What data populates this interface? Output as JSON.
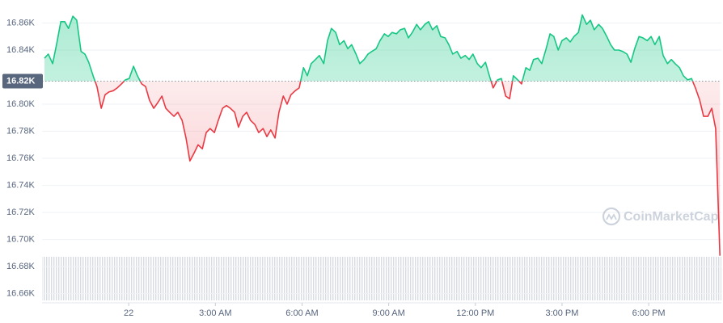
{
  "chart_data": {
    "type": "line",
    "watermark": "CoinMarketCap",
    "up_color": "#16c784",
    "down_color": "#ea3943",
    "grid": true,
    "baseline": {
      "value": 16817,
      "label": "16.82K"
    },
    "xlim": [
      -180,
      1231
    ],
    "ylim": [
      16655,
      16877
    ],
    "xticks": [
      {
        "value": 0,
        "label": "22"
      },
      {
        "value": 180,
        "label": "3:00 AM"
      },
      {
        "value": 360,
        "label": "6:00 AM"
      },
      {
        "value": 540,
        "label": "9:00 AM"
      },
      {
        "value": 720,
        "label": "12:00 PM"
      },
      {
        "value": 900,
        "label": "3:00 PM"
      },
      {
        "value": 1080,
        "label": "6:00 PM"
      }
    ],
    "yticks": [
      {
        "value": 16660,
        "label": "16.66K"
      },
      {
        "value": 16680,
        "label": "16.68K"
      },
      {
        "value": 16700,
        "label": "16.70K"
      },
      {
        "value": 16720,
        "label": "16.72K"
      },
      {
        "value": 16740,
        "label": "16.74K"
      },
      {
        "value": 16760,
        "label": "16.76K"
      },
      {
        "value": 16780,
        "label": "16.78K"
      },
      {
        "value": 16800,
        "label": "16.80K"
      },
      {
        "value": 16840,
        "label": "16.84K"
      },
      {
        "value": 16860,
        "label": "16.86K"
      }
    ],
    "x": [
      -175,
      -167,
      -158,
      -150,
      -141,
      -133,
      -125,
      -116,
      -108,
      -99,
      -91,
      -83,
      -74,
      -66,
      -57,
      -49,
      -41,
      -32,
      -24,
      -15,
      -7,
      1,
      10,
      18,
      27,
      35,
      43,
      52,
      60,
      69,
      77,
      85,
      94,
      102,
      111,
      119,
      127,
      136,
      144,
      153,
      161,
      169,
      178,
      186,
      195,
      203,
      211,
      220,
      228,
      237,
      245,
      253,
      262,
      270,
      279,
      287,
      295,
      304,
      312,
      321,
      329,
      337,
      346,
      354,
      363,
      371,
      379,
      388,
      396,
      405,
      413,
      421,
      430,
      438,
      447,
      455,
      463,
      472,
      480,
      489,
      497,
      505,
      514,
      522,
      531,
      539,
      547,
      556,
      564,
      573,
      581,
      589,
      598,
      606,
      615,
      623,
      631,
      640,
      648,
      657,
      665,
      673,
      682,
      690,
      699,
      707,
      715,
      724,
      732,
      741,
      749,
      757,
      766,
      774,
      783,
      791,
      799,
      808,
      816,
      825,
      833,
      841,
      850,
      858,
      867,
      875,
      883,
      892,
      900,
      909,
      917,
      925,
      934,
      942,
      951,
      959,
      967,
      976,
      984,
      993,
      1001,
      1009,
      1018,
      1026,
      1035,
      1043,
      1051,
      1060,
      1068,
      1077,
      1085,
      1093,
      1102,
      1110,
      1119,
      1127,
      1135,
      1144,
      1152,
      1161,
      1169,
      1177,
      1186,
      1194,
      1203,
      1211,
      1219,
      1228
    ],
    "values": [
      16834,
      16837,
      16830,
      16844,
      16861,
      16861,
      16856,
      16865,
      16862,
      16839,
      16837,
      16831,
      16821,
      16813,
      16797,
      16807,
      16809,
      16810,
      16812,
      16815,
      16818,
      16819,
      16828,
      16821,
      16815,
      16813,
      16803,
      16797,
      16801,
      16806,
      16797,
      16794,
      16791,
      16794,
      16788,
      16775,
      16758,
      16764,
      16770,
      16767,
      16779,
      16782,
      16779,
      16788,
      16797,
      16799,
      16797,
      16794,
      16783,
      16791,
      16794,
      16788,
      16785,
      16779,
      16782,
      16776,
      16781,
      16775,
      16794,
      16806,
      16800,
      16807,
      16810,
      16812,
      16827,
      16821,
      16830,
      16833,
      16836,
      16830,
      16847,
      16856,
      16853,
      16844,
      16847,
      16841,
      16844,
      16837,
      16830,
      16833,
      16837,
      16839,
      16841,
      16847,
      16852,
      16850,
      16853,
      16852,
      16855,
      16856,
      16849,
      16853,
      16859,
      16855,
      16859,
      16861,
      16855,
      16858,
      16850,
      16849,
      16844,
      16837,
      16839,
      16834,
      16836,
      16833,
      16837,
      16830,
      16827,
      16831,
      16821,
      16812,
      16818,
      16819,
      16806,
      16804,
      16821,
      16818,
      16815,
      16827,
      16825,
      16833,
      16834,
      16830,
      16841,
      16852,
      16850,
      16840,
      16847,
      16849,
      16846,
      16850,
      16853,
      16866,
      16859,
      16862,
      16855,
      16859,
      16856,
      16850,
      16844,
      16840,
      16840,
      16839,
      16837,
      16831,
      16841,
      16850,
      16849,
      16847,
      16850,
      16844,
      16850,
      16836,
      16830,
      16833,
      16830,
      16827,
      16821,
      16818,
      16819,
      16812,
      16803,
      16791,
      16791,
      16797,
      16782,
      16688
    ]
  }
}
